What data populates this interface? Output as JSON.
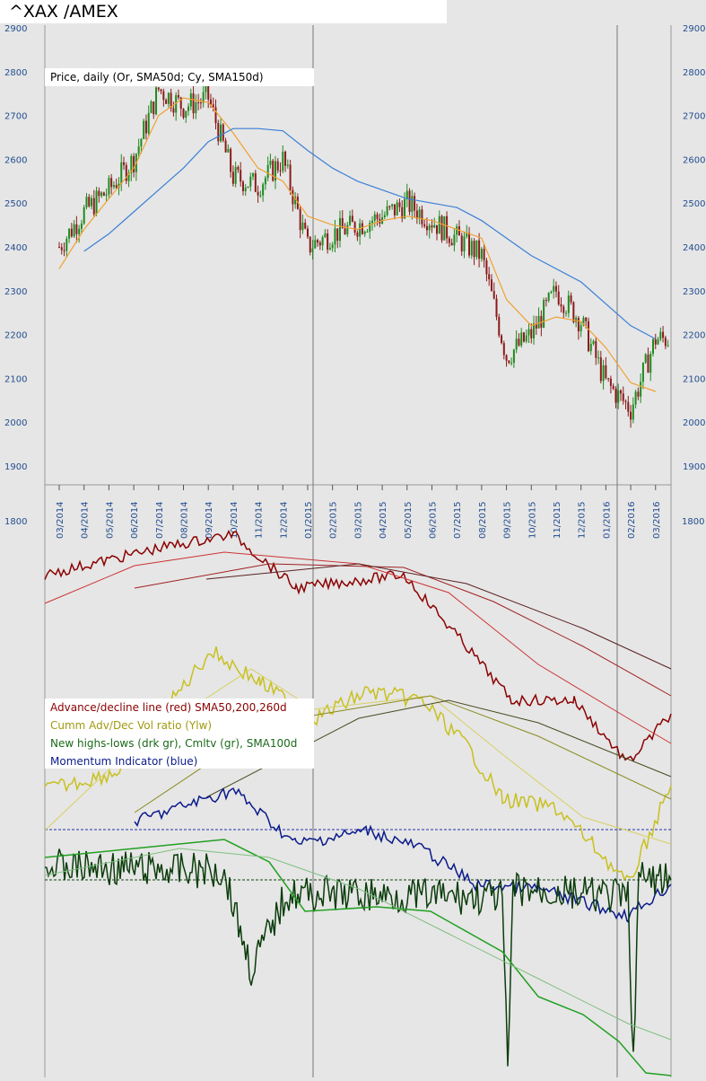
{
  "title": "^XAX /AMEX",
  "legends": {
    "price": "Price, daily (Or, SMA50d; Cy, SMA150d)",
    "ad": "Advance/decline line (red) SMA50,200,260d",
    "vol": "Cumm Adv/Dec Vol ratio (Ylw)",
    "nhl": "New highs-lows (drk gr), Cmltv (gr), SMA100d",
    "mom": "Momentum Indicator (blue)"
  },
  "colors": {
    "price_up": "#1f8a1f",
    "price_down": "#8b1a1a",
    "sma50": "#f0a030",
    "sma150": "#3a7fd6",
    "ad": "#8b0000",
    "vol": "#c8c020",
    "nhl": "#0b3d0b",
    "cumulative": "#22a022",
    "momentum": "#0a1a8a"
  },
  "chart_data": [
    {
      "type": "candlestick",
      "title": "Price, daily (Or, SMA50d; Cy, SMA150d)",
      "y_ticks": [
        1900,
        2000,
        2100,
        2200,
        2300,
        2400,
        2500,
        2600,
        2700,
        2800,
        2900
      ],
      "ylim": [
        1870,
        2905
      ],
      "x_ticks": [
        "03/2014",
        "04/2014",
        "05/2014",
        "06/2014",
        "07/2014",
        "08/2014",
        "09/2014",
        "10/2014",
        "11/2014",
        "12/2014",
        "01/2015",
        "02/2015",
        "03/2015",
        "04/2015",
        "05/2015",
        "06/2015",
        "07/2015",
        "08/2015",
        "09/2015",
        "10/2015",
        "11/2015",
        "12/2015",
        "01/2016",
        "02/2016",
        "03/2016"
      ],
      "close_by_month": [
        2400,
        2480,
        2530,
        2600,
        2760,
        2720,
        2740,
        2560,
        2540,
        2600,
        2400,
        2430,
        2450,
        2470,
        2500,
        2460,
        2420,
        2380,
        2150,
        2200,
        2300,
        2230,
        2090,
        2030,
        2190
      ],
      "series": [
        {
          "name": "SMA50d",
          "values": [
            2350,
            2440,
            2510,
            2580,
            2700,
            2740,
            2730,
            2660,
            2580,
            2550,
            2470,
            2450,
            2440,
            2460,
            2470,
            2460,
            2440,
            2420,
            2280,
            2220,
            2240,
            2230,
            2170,
            2090,
            2070
          ]
        },
        {
          "name": "SMA150d",
          "values": [
            null,
            2390,
            2430,
            2480,
            2530,
            2580,
            2640,
            2670,
            2670,
            2665,
            2620,
            2580,
            2550,
            2530,
            2510,
            2500,
            2490,
            2460,
            2420,
            2380,
            2350,
            2320,
            2270,
            2220,
            2190
          ]
        }
      ]
    },
    {
      "type": "line",
      "title": "Advance/decline line (red) SMA50,200,260d",
      "left_tick": "1800",
      "right_tick": "1800",
      "series": [
        {
          "name": "Advance/decline line",
          "color": "#8b0000"
        },
        {
          "name": "Cumm Adv/Dec Vol ratio",
          "color": "#c8c020"
        },
        {
          "name": "New highs-lows",
          "color": "#0b3d0b"
        },
        {
          "name": "Cmltv",
          "color": "#22a022"
        },
        {
          "name": "Momentum Indicator",
          "color": "#0a1a8a"
        }
      ]
    }
  ]
}
